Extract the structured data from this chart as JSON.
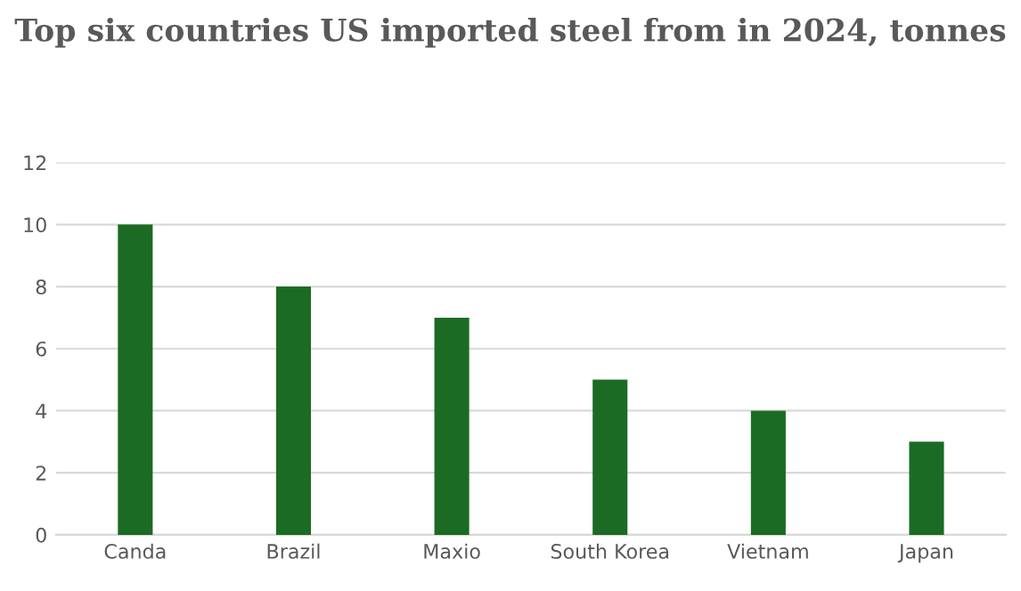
{
  "chart_data": {
    "type": "bar",
    "title": "Top six countries US imported steel from in 2024, tonnes",
    "categories": [
      "Canda",
      "Brazil",
      "Maxio",
      "South Korea",
      "Vietnam",
      "Japan"
    ],
    "values": [
      10,
      8,
      7,
      5,
      4,
      3
    ],
    "color": "#1b6b24",
    "ylim": [
      0,
      12
    ],
    "yticks": [
      0,
      2,
      4,
      6,
      8,
      10,
      12
    ],
    "grid": "y"
  }
}
